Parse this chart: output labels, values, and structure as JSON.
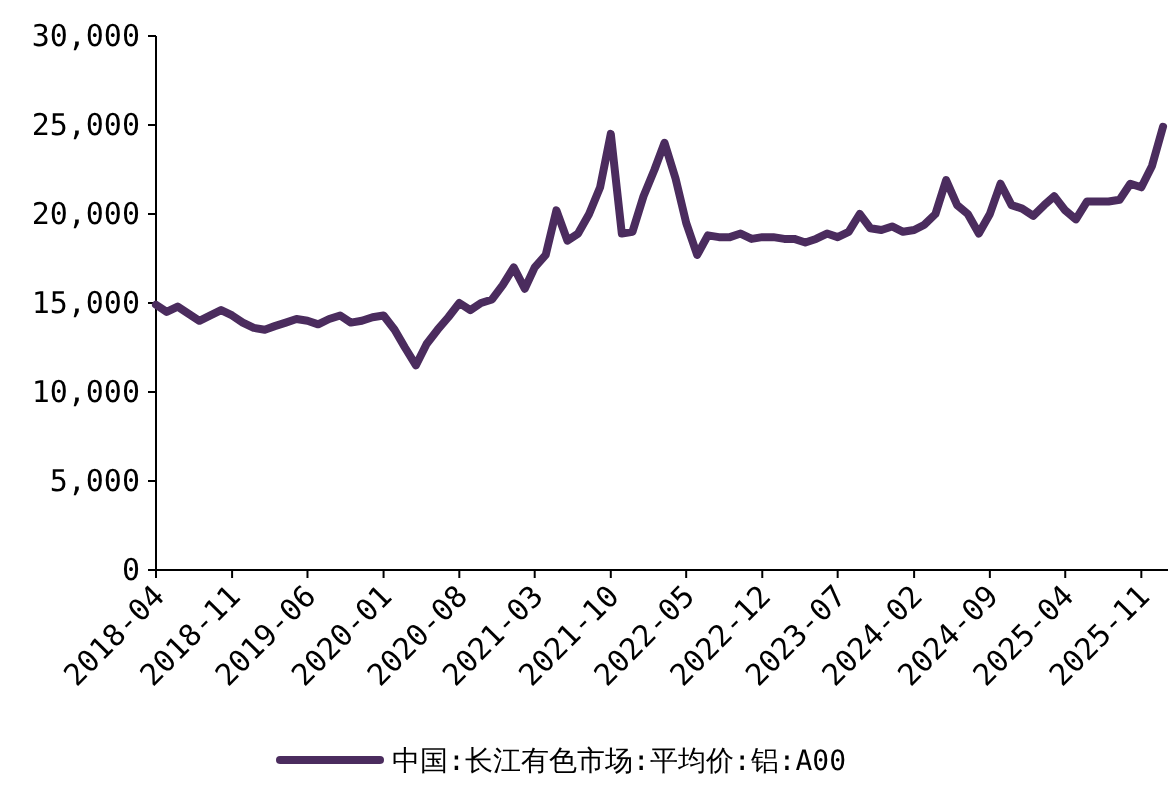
{
  "chart_data": {
    "type": "line",
    "x": [
      "2018-04",
      "2018-05",
      "2018-06",
      "2018-07",
      "2018-08",
      "2018-09",
      "2018-10",
      "2018-11",
      "2018-12",
      "2019-01",
      "2019-02",
      "2019-03",
      "2019-04",
      "2019-05",
      "2019-06",
      "2019-07",
      "2019-08",
      "2019-09",
      "2019-10",
      "2019-11",
      "2019-12",
      "2020-01",
      "2020-02",
      "2020-03",
      "2020-04",
      "2020-05",
      "2020-06",
      "2020-07",
      "2020-08",
      "2020-09",
      "2020-10",
      "2020-11",
      "2020-12",
      "2021-01",
      "2021-02",
      "2021-03",
      "2021-04",
      "2021-05",
      "2021-06",
      "2021-07",
      "2021-08",
      "2021-09",
      "2021-10",
      "2021-11",
      "2021-12",
      "2022-01",
      "2022-02",
      "2022-03",
      "2022-04",
      "2022-05",
      "2022-06",
      "2022-07",
      "2022-08",
      "2022-09",
      "2022-10",
      "2022-11",
      "2022-12",
      "2023-01",
      "2023-02",
      "2023-03",
      "2023-04",
      "2023-05",
      "2023-06",
      "2023-07",
      "2023-08",
      "2023-09",
      "2023-10",
      "2023-11",
      "2023-12",
      "2024-01",
      "2024-02",
      "2024-03",
      "2024-04",
      "2024-05",
      "2024-06",
      "2024-07",
      "2024-08",
      "2024-09",
      "2024-10",
      "2024-11",
      "2024-12",
      "2025-01",
      "2025-02",
      "2025-03",
      "2025-04",
      "2025-05",
      "2025-06",
      "2025-07",
      "2025-08",
      "2025-09",
      "2025-10",
      "2025-11",
      "2025-12",
      "2026-01"
    ],
    "series": [
      {
        "name": "中国:长江有色市场:平均价:铝:A00",
        "color": "#4b2c5e",
        "values": [
          14900,
          14500,
          14800,
          14400,
          14000,
          14300,
          14600,
          14300,
          13900,
          13600,
          13500,
          13700,
          13900,
          14100,
          14000,
          13800,
          14100,
          14300,
          13900,
          14000,
          14200,
          14300,
          13500,
          12500,
          11500,
          12700,
          13500,
          14200,
          15000,
          14600,
          15000,
          15200,
          16000,
          17000,
          15800,
          17000,
          17700,
          20200,
          18500,
          18900,
          20000,
          21500,
          24500,
          18900,
          19000,
          21000,
          22500,
          24000,
          22000,
          19500,
          17700,
          18800,
          18700,
          18700,
          18900,
          18600,
          18700,
          18700,
          18600,
          18600,
          18400,
          18600,
          18900,
          18700,
          19000,
          20000,
          19200,
          19100,
          19300,
          19000,
          19100,
          19400,
          20000,
          21900,
          20500,
          20000,
          18900,
          20000,
          21700,
          20500,
          20300,
          19900,
          20500,
          21000,
          20200,
          19700,
          20700,
          20700,
          20700,
          20800,
          21700,
          21500,
          22700,
          24900
        ]
      }
    ],
    "ylim": [
      0,
      30000
    ],
    "yticks": [
      {
        "value": 0,
        "label": "0"
      },
      {
        "value": 5000,
        "label": "5,000"
      },
      {
        "value": 10000,
        "label": "10,000"
      },
      {
        "value": 15000,
        "label": "15,000"
      },
      {
        "value": 20000,
        "label": "20,000"
      },
      {
        "value": 25000,
        "label": "25,000"
      },
      {
        "value": 30000,
        "label": "30,000"
      }
    ],
    "xlim": [
      "2018-04",
      "2026-01-15"
    ],
    "xticks": [
      "2018-04",
      "2018-11",
      "2019-06",
      "2020-01",
      "2020-08",
      "2021-03",
      "2021-10",
      "2022-05",
      "2022-12",
      "2023-07",
      "2024-02",
      "2024-09",
      "2025-04",
      "2025-11"
    ],
    "grid": false,
    "legend": "bottom",
    "marker": "none",
    "line_style": "solid"
  }
}
